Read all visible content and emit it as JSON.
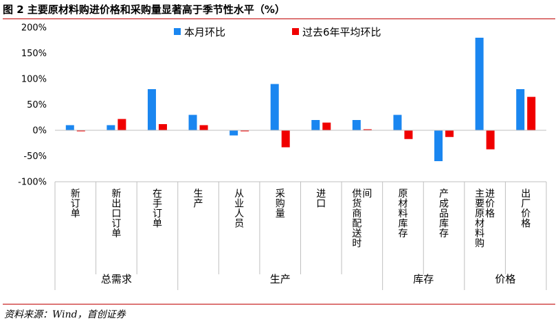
{
  "title": "图 2 主要原材料购进价格和采购量显著高于季节性水平（%）",
  "source": "资料来源：Wind，首创证券",
  "colors": {
    "series1": "#1a86f0",
    "series2": "#f00000",
    "rule": "#c00000",
    "axis": "#bfbfbf"
  },
  "chart_data": {
    "type": "bar",
    "title": "图 2 主要原材料购进价格和采购量显著高于季节性水平（%）",
    "xlabel": "",
    "ylabel": "",
    "ylim": [
      -100,
      200
    ],
    "yticks": [
      -100,
      -50,
      0,
      50,
      100,
      150,
      200
    ],
    "ytick_labels": [
      "-100%",
      "-50%",
      "0%",
      "50%",
      "100%",
      "150%",
      "200%"
    ],
    "legend_position": "top",
    "grid": false,
    "categories": [
      [
        "新订单"
      ],
      [
        "新出口订单"
      ],
      [
        "在手订单"
      ],
      [
        "生产"
      ],
      [
        "从业人员"
      ],
      [
        "采购量"
      ],
      [
        "进口"
      ],
      [
        "供货商配送时",
        "间"
      ],
      [
        "原材料库存"
      ],
      [
        "产成品库存"
      ],
      [
        "主要原材料购",
        "进价格"
      ],
      [
        "出厂价格"
      ]
    ],
    "groups": [
      {
        "label": "总需求",
        "count": 3
      },
      {
        "label": "生产",
        "count": 5
      },
      {
        "label": "库存",
        "count": 2
      },
      {
        "label": "价格",
        "count": 2
      }
    ],
    "series": [
      {
        "name": "本月环比",
        "values": [
          10,
          10,
          80,
          30,
          -10,
          90,
          20,
          20,
          30,
          -60,
          180,
          80
        ]
      },
      {
        "name": "过去6年平均环比",
        "values": [
          -2,
          22,
          12,
          10,
          -2,
          -33,
          15,
          2,
          -17,
          -13,
          -37,
          65
        ]
      }
    ]
  }
}
